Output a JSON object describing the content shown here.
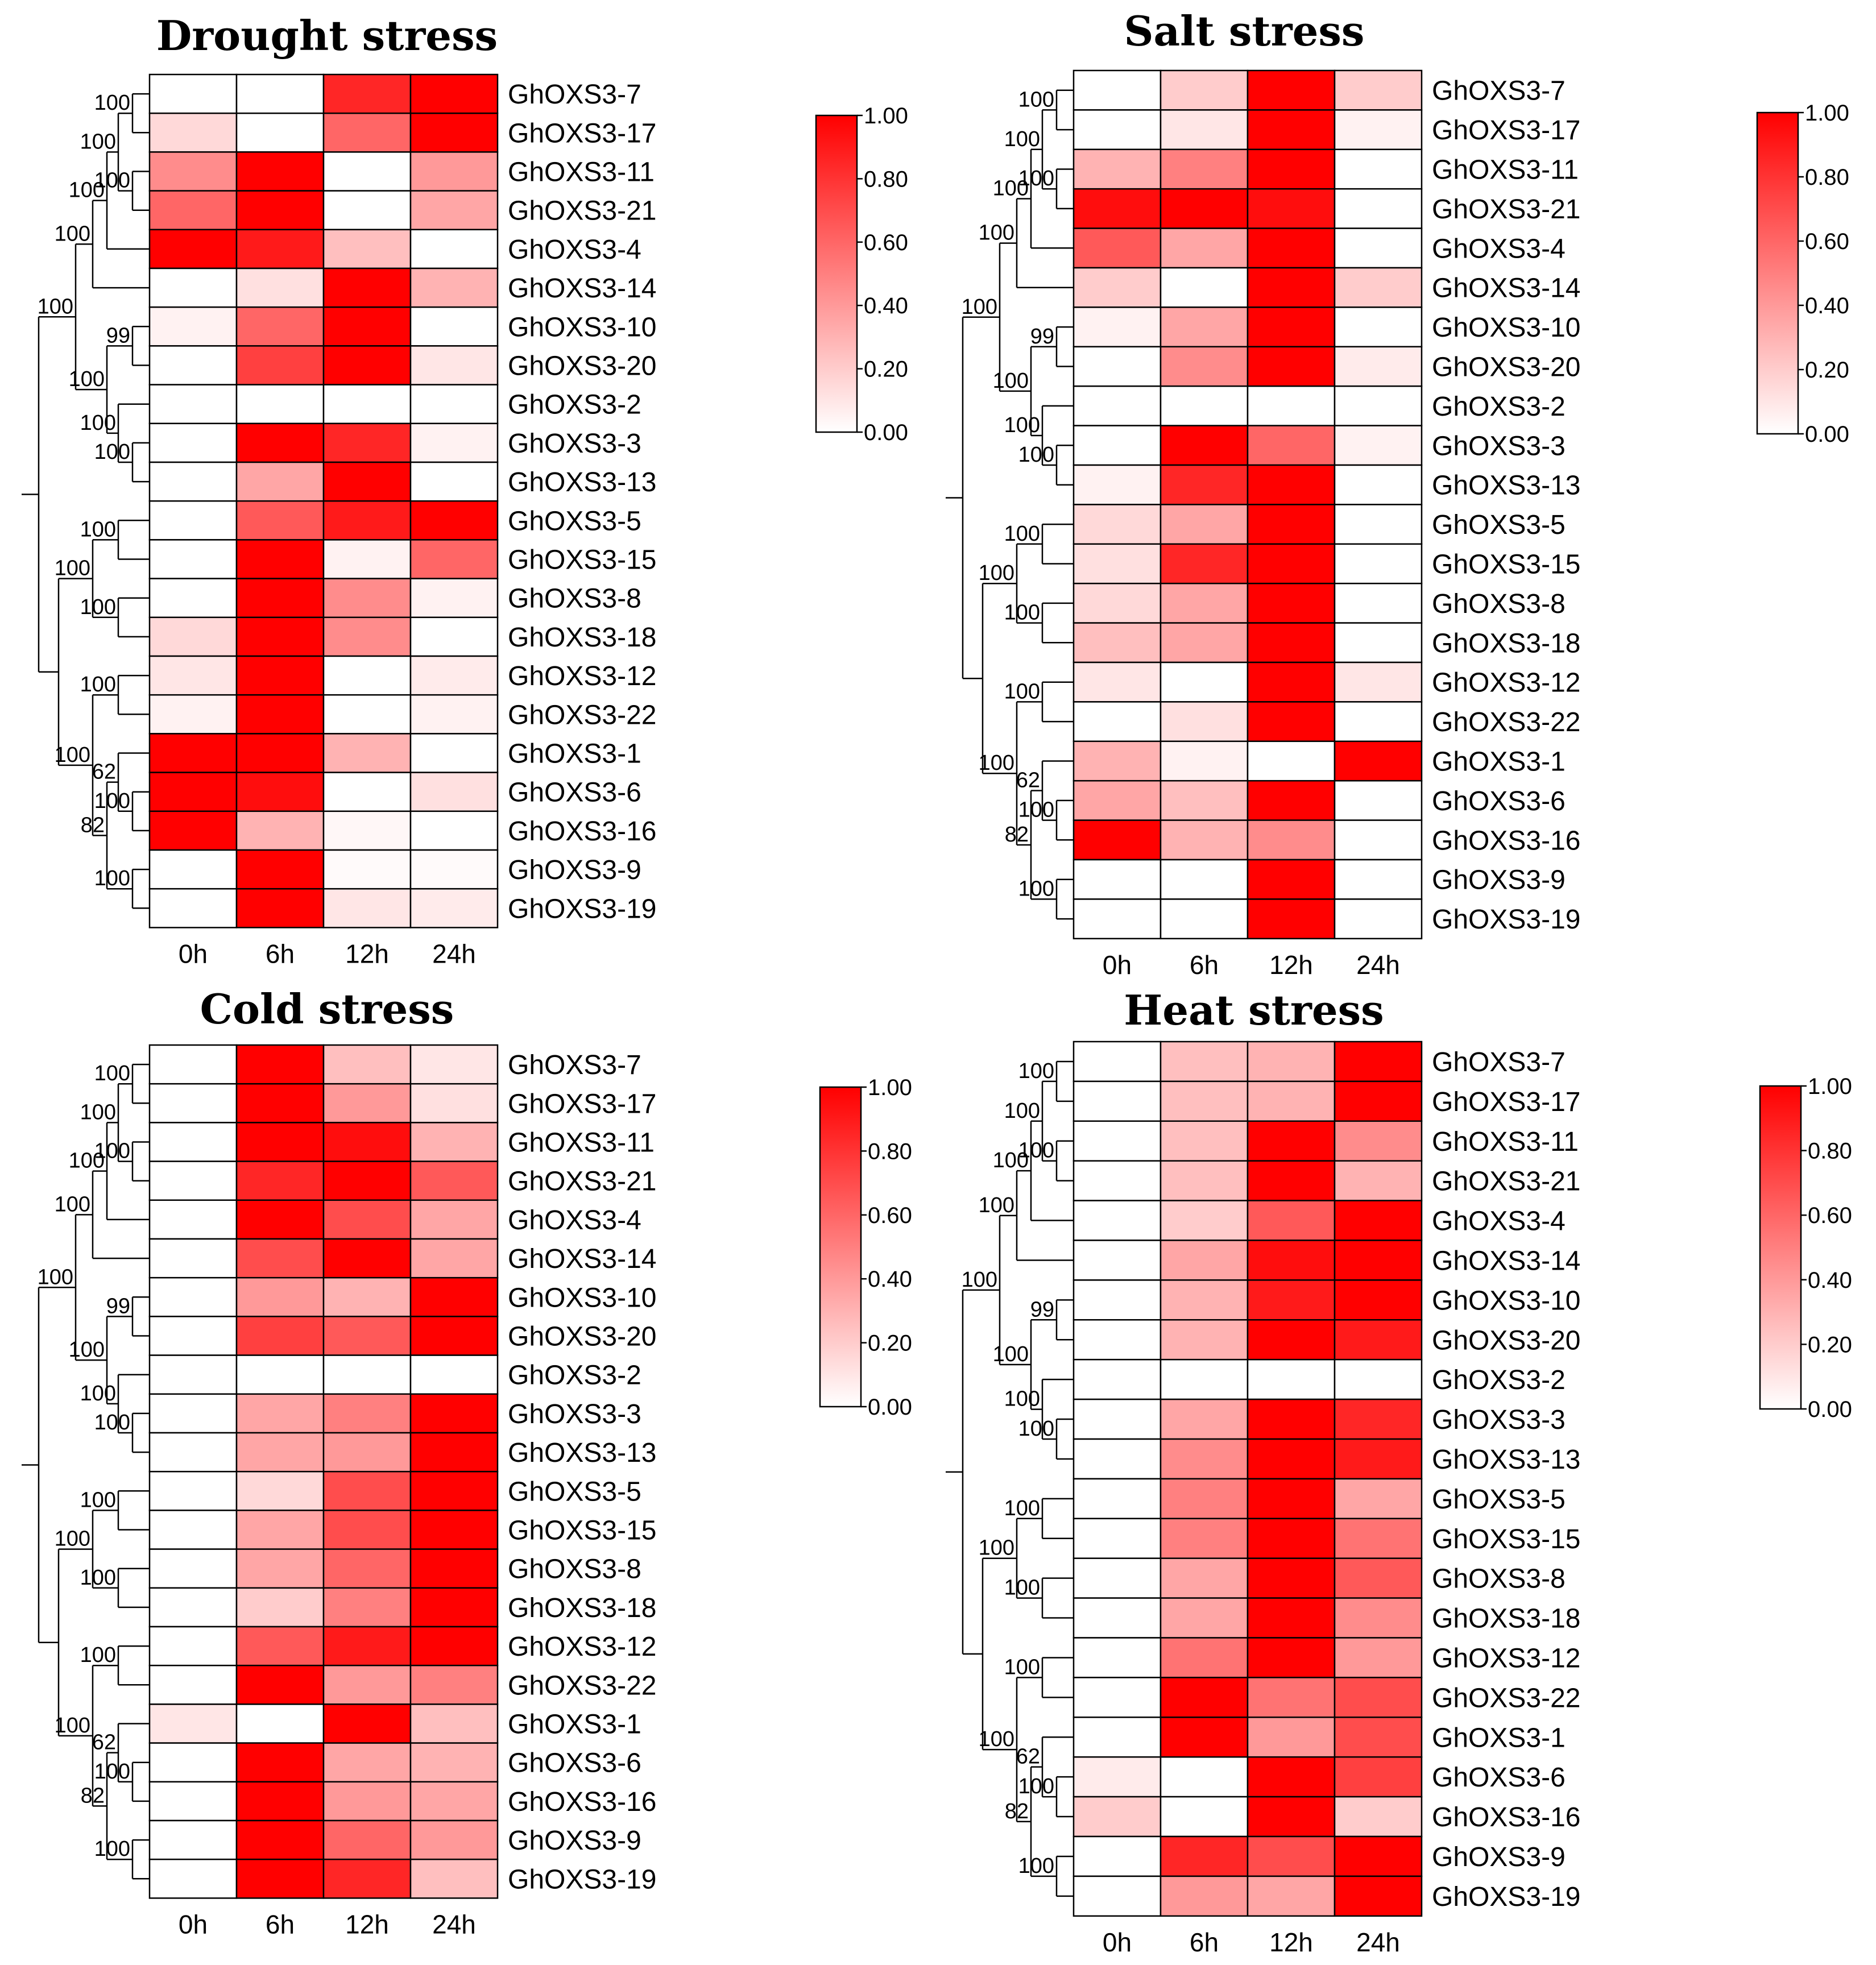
{
  "chart_data": [
    {
      "type": "heatmap",
      "title": "Drought stress",
      "columns": [
        "0h",
        "6h",
        "12h",
        "24h"
      ],
      "rows": [
        "GhOXS3-7",
        "GhOXS3-17",
        "GhOXS3-11",
        "GhOXS3-21",
        "GhOXS3-4",
        "GhOXS3-14",
        "GhOXS3-10",
        "GhOXS3-20",
        "GhOXS3-2",
        "GhOXS3-3",
        "GhOXS3-13",
        "GhOXS3-5",
        "GhOXS3-15",
        "GhOXS3-8",
        "GhOXS3-18",
        "GhOXS3-12",
        "GhOXS3-22",
        "GhOXS3-1",
        "GhOXS3-6",
        "GhOXS3-16",
        "GhOXS3-9",
        "GhOXS3-19"
      ],
      "values": [
        [
          0.0,
          0.0,
          0.85,
          1.0
        ],
        [
          0.15,
          0.0,
          0.6,
          1.0
        ],
        [
          0.45,
          1.0,
          0.0,
          0.4
        ],
        [
          0.6,
          1.0,
          0.0,
          0.35
        ],
        [
          1.0,
          0.9,
          0.25,
          0.0
        ],
        [
          0.0,
          0.12,
          1.0,
          0.3
        ],
        [
          0.05,
          0.6,
          1.0,
          0.0
        ],
        [
          0.0,
          0.75,
          1.0,
          0.1
        ],
        [
          0.0,
          0.0,
          0.0,
          0.0
        ],
        [
          0.0,
          1.0,
          0.85,
          0.05
        ],
        [
          0.0,
          0.35,
          1.0,
          0.0
        ],
        [
          0.0,
          0.65,
          0.9,
          1.0
        ],
        [
          0.0,
          1.0,
          0.05,
          0.6
        ],
        [
          0.0,
          1.0,
          0.45,
          0.05
        ],
        [
          0.15,
          1.0,
          0.45,
          0.0
        ],
        [
          0.1,
          1.0,
          0.0,
          0.08
        ],
        [
          0.05,
          1.0,
          0.0,
          0.05
        ],
        [
          1.0,
          1.0,
          0.3,
          0.0
        ],
        [
          1.0,
          0.95,
          0.0,
          0.12
        ],
        [
          1.0,
          0.3,
          0.03,
          0.0
        ],
        [
          0.0,
          1.0,
          0.02,
          0.02
        ],
        [
          0.0,
          1.0,
          0.1,
          0.08
        ]
      ],
      "colorbar": {
        "min": 0.0,
        "max": 1.0,
        "ticks": [
          "1.00",
          "0.80",
          "0.60",
          "0.40",
          "0.20",
          "0.00"
        ],
        "low_color": "#ffffff",
        "high_color": "#ff0000"
      },
      "bootstrap": [
        "100",
        "100",
        "100",
        "100",
        "100",
        "99",
        "100",
        "100",
        "100",
        "100",
        "100",
        "100",
        "100",
        "100",
        "100",
        "62",
        "100",
        "82",
        "100"
      ]
    },
    {
      "type": "heatmap",
      "title": "Salt stress",
      "columns": [
        "0h",
        "6h",
        "12h",
        "24h"
      ],
      "rows": [
        "GhOXS3-7",
        "GhOXS3-17",
        "GhOXS3-11",
        "GhOXS3-21",
        "GhOXS3-4",
        "GhOXS3-14",
        "GhOXS3-10",
        "GhOXS3-20",
        "GhOXS3-2",
        "GhOXS3-3",
        "GhOXS3-13",
        "GhOXS3-5",
        "GhOXS3-15",
        "GhOXS3-8",
        "GhOXS3-18",
        "GhOXS3-12",
        "GhOXS3-22",
        "GhOXS3-1",
        "GhOXS3-6",
        "GhOXS3-16",
        "GhOXS3-9",
        "GhOXS3-19"
      ],
      "values": [
        [
          0.0,
          0.2,
          1.0,
          0.2
        ],
        [
          0.0,
          0.1,
          1.0,
          0.05
        ],
        [
          0.3,
          0.5,
          1.0,
          0.0
        ],
        [
          0.95,
          1.0,
          0.95,
          0.0
        ],
        [
          0.65,
          0.35,
          1.0,
          0.0
        ],
        [
          0.2,
          0.0,
          1.0,
          0.2
        ],
        [
          0.05,
          0.35,
          1.0,
          0.0
        ],
        [
          0.0,
          0.45,
          1.0,
          0.08
        ],
        [
          0.0,
          0.0,
          0.0,
          0.0
        ],
        [
          0.0,
          1.0,
          0.6,
          0.05
        ],
        [
          0.05,
          0.85,
          1.0,
          0.0
        ],
        [
          0.15,
          0.35,
          1.0,
          0.0
        ],
        [
          0.12,
          0.85,
          1.0,
          0.0
        ],
        [
          0.15,
          0.35,
          1.0,
          0.0
        ],
        [
          0.25,
          0.35,
          1.0,
          0.0
        ],
        [
          0.1,
          0.0,
          1.0,
          0.1
        ],
        [
          0.0,
          0.12,
          1.0,
          0.0
        ],
        [
          0.3,
          0.05,
          0.0,
          1.0
        ],
        [
          0.35,
          0.25,
          1.0,
          0.0
        ],
        [
          1.0,
          0.3,
          0.45,
          0.0
        ],
        [
          0.0,
          0.0,
          1.0,
          0.0
        ],
        [
          0.0,
          0.0,
          1.0,
          0.0
        ]
      ],
      "colorbar": {
        "min": 0.0,
        "max": 1.0,
        "ticks": [
          "1.00",
          "0.80",
          "0.60",
          "0.40",
          "0.20",
          "0.00"
        ],
        "low_color": "#ffffff",
        "high_color": "#ff0000"
      },
      "bootstrap": [
        "100",
        "100",
        "100",
        "100",
        "100",
        "99",
        "100",
        "100",
        "100",
        "100",
        "100",
        "100",
        "100",
        "100",
        "100",
        "62",
        "100",
        "82",
        "100"
      ]
    },
    {
      "type": "heatmap",
      "title": "Cold stress",
      "columns": [
        "0h",
        "6h",
        "12h",
        "24h"
      ],
      "rows": [
        "GhOXS3-7",
        "GhOXS3-17",
        "GhOXS3-11",
        "GhOXS3-21",
        "GhOXS3-4",
        "GhOXS3-14",
        "GhOXS3-10",
        "GhOXS3-20",
        "GhOXS3-2",
        "GhOXS3-3",
        "GhOXS3-13",
        "GhOXS3-5",
        "GhOXS3-15",
        "GhOXS3-8",
        "GhOXS3-18",
        "GhOXS3-12",
        "GhOXS3-22",
        "GhOXS3-1",
        "GhOXS3-6",
        "GhOXS3-16",
        "GhOXS3-9",
        "GhOXS3-19"
      ],
      "values": [
        [
          0.0,
          1.0,
          0.25,
          0.1
        ],
        [
          0.0,
          1.0,
          0.4,
          0.12
        ],
        [
          0.0,
          1.0,
          0.95,
          0.3
        ],
        [
          0.0,
          0.85,
          1.0,
          0.65
        ],
        [
          0.0,
          1.0,
          0.7,
          0.35
        ],
        [
          0.0,
          0.7,
          1.0,
          0.35
        ],
        [
          0.0,
          0.4,
          0.3,
          1.0
        ],
        [
          0.0,
          0.75,
          0.65,
          1.0
        ],
        [
          0.0,
          0.0,
          0.0,
          0.0
        ],
        [
          0.0,
          0.35,
          0.5,
          1.0
        ],
        [
          0.0,
          0.35,
          0.4,
          1.0
        ],
        [
          0.0,
          0.15,
          0.7,
          1.0
        ],
        [
          0.0,
          0.35,
          0.7,
          1.0
        ],
        [
          0.0,
          0.35,
          0.6,
          1.0
        ],
        [
          0.0,
          0.2,
          0.5,
          1.0
        ],
        [
          0.0,
          0.65,
          0.9,
          1.0
        ],
        [
          0.0,
          1.0,
          0.4,
          0.5
        ],
        [
          0.1,
          0.0,
          1.0,
          0.25
        ],
        [
          0.0,
          1.0,
          0.35,
          0.3
        ],
        [
          0.0,
          1.0,
          0.4,
          0.35
        ],
        [
          0.0,
          1.0,
          0.6,
          0.4
        ],
        [
          0.0,
          1.0,
          0.85,
          0.25
        ]
      ],
      "colorbar": {
        "min": 0.0,
        "max": 1.0,
        "ticks": [
          "1.00",
          "0.80",
          "0.60",
          "0.40",
          "0.20",
          "0.00"
        ],
        "low_color": "#ffffff",
        "high_color": "#ff0000"
      },
      "bootstrap": [
        "100",
        "100",
        "100",
        "100",
        "100",
        "99",
        "100",
        "100",
        "100",
        "100",
        "100",
        "100",
        "100",
        "100",
        "100",
        "62",
        "100",
        "82",
        "100"
      ]
    },
    {
      "type": "heatmap",
      "title": "Heat stress",
      "columns": [
        "0h",
        "6h",
        "12h",
        "24h"
      ],
      "rows": [
        "GhOXS3-7",
        "GhOXS3-17",
        "GhOXS3-11",
        "GhOXS3-21",
        "GhOXS3-4",
        "GhOXS3-14",
        "GhOXS3-10",
        "GhOXS3-20",
        "GhOXS3-2",
        "GhOXS3-3",
        "GhOXS3-13",
        "GhOXS3-5",
        "GhOXS3-15",
        "GhOXS3-8",
        "GhOXS3-18",
        "GhOXS3-12",
        "GhOXS3-22",
        "GhOXS3-1",
        "GhOXS3-6",
        "GhOXS3-16",
        "GhOXS3-9",
        "GhOXS3-19"
      ],
      "values": [
        [
          0.0,
          0.25,
          0.3,
          1.0
        ],
        [
          0.0,
          0.25,
          0.3,
          1.0
        ],
        [
          0.0,
          0.25,
          1.0,
          0.45
        ],
        [
          0.0,
          0.25,
          1.0,
          0.3
        ],
        [
          0.0,
          0.2,
          0.65,
          1.0
        ],
        [
          0.0,
          0.35,
          0.95,
          1.0
        ],
        [
          0.0,
          0.3,
          0.9,
          1.0
        ],
        [
          0.0,
          0.3,
          1.0,
          0.9
        ],
        [
          0.0,
          0.0,
          0.0,
          0.0
        ],
        [
          0.0,
          0.35,
          1.0,
          0.85
        ],
        [
          0.0,
          0.45,
          1.0,
          0.9
        ],
        [
          0.0,
          0.5,
          1.0,
          0.35
        ],
        [
          0.0,
          0.5,
          1.0,
          0.55
        ],
        [
          0.0,
          0.35,
          1.0,
          0.65
        ],
        [
          0.0,
          0.35,
          1.0,
          0.45
        ],
        [
          0.0,
          0.55,
          1.0,
          0.4
        ],
        [
          0.0,
          1.0,
          0.55,
          0.7
        ],
        [
          0.0,
          1.0,
          0.4,
          0.7
        ],
        [
          0.08,
          0.0,
          1.0,
          0.75
        ],
        [
          0.2,
          0.0,
          1.0,
          0.2
        ],
        [
          0.0,
          0.85,
          0.7,
          1.0
        ],
        [
          0.0,
          0.4,
          0.35,
          1.0
        ]
      ],
      "colorbar": {
        "min": 0.0,
        "max": 1.0,
        "ticks": [
          "1.00",
          "0.80",
          "0.60",
          "0.40",
          "0.20",
          "0.00"
        ],
        "low_color": "#ffffff",
        "high_color": "#ff0000"
      },
      "bootstrap": [
        "100",
        "100",
        "100",
        "100",
        "100",
        "99",
        "100",
        "100",
        "100",
        "100",
        "100",
        "100",
        "100",
        "100",
        "100",
        "62",
        "100",
        "82",
        "100"
      ]
    }
  ]
}
